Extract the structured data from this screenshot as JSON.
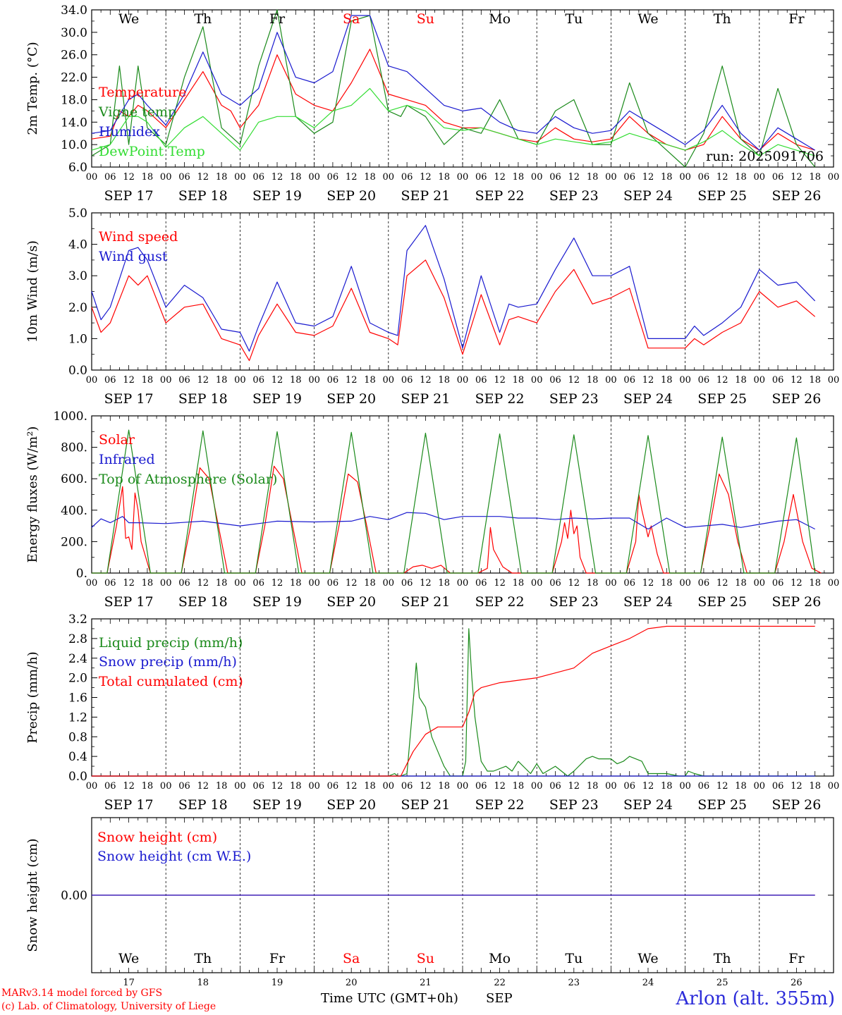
{
  "run_label": "run: 2025091706",
  "credits": {
    "line1": "MARv3.14 model forced by GFS",
    "line2": "(c) Lab. of Climatology, University of Liege"
  },
  "station": "Arlon (alt. 355m)",
  "x_axis": {
    "title": "Time UTC (GMT+0h)",
    "month": "SEP",
    "hour_ticks": [
      "00",
      "06",
      "12",
      "18"
    ],
    "date_labels": [
      "SEP 17",
      "SEP 18",
      "SEP 19",
      "SEP 20",
      "SEP 21",
      "SEP 22",
      "SEP 23",
      "SEP 24",
      "SEP 25",
      "SEP 26"
    ],
    "day_names": [
      "We",
      "Th",
      "Fr",
      "Sa",
      "Su",
      "Mo",
      "Tu",
      "We",
      "Th",
      "Fr"
    ],
    "day_numbers": [
      "17",
      "18",
      "19",
      "20",
      "21",
      "22",
      "23",
      "24",
      "25",
      "26"
    ],
    "weekend_color": "#ff0000",
    "weekend_index": [
      3,
      4
    ]
  },
  "chart_data": [
    {
      "type": "line",
      "ylabel": "2m Temp. (°C)",
      "ylim": [
        6.0,
        34.0
      ],
      "ytick_labels": [
        "6.0",
        "10.0",
        "14.0",
        "18.0",
        "22.0",
        "26.0",
        "30.0",
        "34.0"
      ],
      "x_unit": "hours since 2025-09-17 00 UTC",
      "series": [
        {
          "name": "Temperature",
          "color": "#ff0000",
          "x": [
            0,
            6,
            9,
            12,
            15,
            18,
            24,
            30,
            36,
            42,
            45,
            48,
            54,
            60,
            66,
            72,
            78,
            84,
            90,
            96,
            102,
            108,
            114,
            120,
            126,
            132,
            138,
            144,
            150,
            156,
            162,
            168,
            174,
            180,
            186,
            192,
            198,
            204,
            210,
            216,
            222,
            228,
            234
          ],
          "y": [
            11,
            11.5,
            16,
            15,
            17,
            16,
            13,
            18,
            23,
            17,
            16,
            13,
            17,
            26,
            19,
            17,
            16,
            21,
            27,
            19,
            18,
            17,
            14,
            13,
            13,
            12,
            11,
            10.5,
            13,
            11,
            10.5,
            11,
            15,
            12,
            10,
            9,
            10,
            15,
            11,
            9,
            12,
            10,
            9
          ]
        },
        {
          "name": "Vigne temp",
          "color": "#1b8a1b",
          "x": [
            0,
            6,
            9,
            12,
            15,
            18,
            24,
            30,
            36,
            42,
            48,
            54,
            60,
            66,
            72,
            78,
            84,
            90,
            96,
            100,
            102,
            108,
            114,
            120,
            126,
            132,
            138,
            144,
            150,
            156,
            162,
            168,
            174,
            180,
            186,
            192,
            198,
            204,
            210,
            216,
            222,
            228,
            234
          ],
          "y": [
            8,
            10,
            24,
            10,
            24,
            13,
            10,
            22,
            31,
            13,
            10,
            24,
            34,
            15,
            12,
            14,
            32,
            33,
            16,
            15,
            17,
            15,
            10,
            13,
            12,
            18,
            11,
            10,
            16,
            18,
            10,
            10,
            21,
            12,
            9,
            6,
            12,
            24,
            11,
            8,
            20,
            10,
            6
          ]
        },
        {
          "name": "Humidex",
          "color": "#1a1acf",
          "x": [
            0,
            6,
            12,
            15,
            18,
            24,
            30,
            36,
            42,
            48,
            54,
            60,
            66,
            72,
            78,
            84,
            90,
            96,
            102,
            108,
            114,
            120,
            126,
            132,
            138,
            144,
            150,
            156,
            162,
            168,
            174,
            180,
            186,
            192,
            198,
            204,
            210,
            216,
            222,
            228,
            234
          ],
          "y": [
            12,
            12.5,
            18,
            19,
            17,
            13.5,
            19,
            26.5,
            19,
            17,
            20,
            30,
            22,
            21,
            23,
            33,
            33,
            24,
            23,
            20,
            17,
            16,
            16.5,
            14,
            12.5,
            12,
            15,
            13,
            12,
            12.5,
            16,
            14,
            12,
            10,
            12.5,
            17,
            12,
            9,
            13,
            11,
            9
          ]
        },
        {
          "name": "DewPoint Temp",
          "color": "#33dd33",
          "x": [
            0,
            6,
            12,
            15,
            18,
            24,
            30,
            36,
            42,
            48,
            54,
            60,
            66,
            72,
            78,
            84,
            90,
            96,
            102,
            108,
            114,
            120,
            126,
            132,
            138,
            144,
            150,
            156,
            162,
            168,
            174,
            180,
            186,
            192,
            198,
            204,
            210,
            216,
            222,
            228,
            234
          ],
          "y": [
            9,
            10,
            15,
            15,
            14,
            9.5,
            13,
            15,
            12,
            9,
            14,
            15,
            15,
            13,
            16,
            17,
            20,
            16,
            17,
            16,
            13,
            12.5,
            13,
            12,
            11,
            10,
            11,
            10.5,
            10,
            10.5,
            12,
            11,
            10,
            9,
            10.5,
            12.5,
            10,
            8,
            10,
            9,
            8
          ]
        }
      ]
    },
    {
      "type": "line",
      "ylabel": "10m Wind (m/s)",
      "ylim": [
        0.0,
        5.0
      ],
      "ytick_labels": [
        "0.0",
        "1.0",
        "2.0",
        "3.0",
        "4.0",
        "5.0"
      ],
      "series": [
        {
          "name": "Wind speed",
          "color": "#ff0000",
          "x": [
            0,
            3,
            6,
            12,
            15,
            18,
            24,
            30,
            36,
            42,
            48,
            51,
            54,
            60,
            66,
            72,
            78,
            84,
            90,
            96,
            99,
            102,
            108,
            114,
            120,
            126,
            132,
            135,
            138,
            144,
            150,
            156,
            162,
            168,
            174,
            180,
            186,
            192,
            195,
            198,
            204,
            210,
            216,
            222,
            228,
            234
          ],
          "y": [
            2,
            1.2,
            1.5,
            3,
            2.7,
            3,
            1.5,
            2,
            2.1,
            1,
            0.8,
            0.3,
            1.1,
            2.1,
            1.2,
            1.1,
            1.4,
            2.6,
            1.2,
            1,
            0.8,
            3,
            3.5,
            2.3,
            0.5,
            2.4,
            0.8,
            1.6,
            1.7,
            1.5,
            2.5,
            3.2,
            2.1,
            2.3,
            2.6,
            0.7,
            0.7,
            0.7,
            1,
            0.8,
            1.2,
            1.5,
            2.5,
            2,
            2.2,
            1.7
          ]
        },
        {
          "name": "Wind gust",
          "color": "#1a1acf",
          "x": [
            0,
            3,
            6,
            12,
            15,
            18,
            24,
            30,
            36,
            42,
            48,
            51,
            54,
            60,
            66,
            72,
            78,
            84,
            90,
            96,
            99,
            102,
            108,
            114,
            120,
            126,
            132,
            135,
            138,
            144,
            150,
            156,
            162,
            168,
            174,
            180,
            186,
            192,
            195,
            198,
            204,
            210,
            216,
            222,
            228,
            234
          ],
          "y": [
            2.5,
            1.6,
            2,
            3.8,
            3.9,
            3.5,
            2,
            2.7,
            2.3,
            1.3,
            1.2,
            0.6,
            1.4,
            2.8,
            1.5,
            1.4,
            1.7,
            3.3,
            1.5,
            1.2,
            1.1,
            3.8,
            4.6,
            2.9,
            0.7,
            3,
            1.2,
            2.1,
            2,
            2.1,
            3.2,
            4.2,
            3,
            3,
            3.3,
            1,
            1,
            1,
            1.4,
            1.1,
            1.5,
            2,
            3.2,
            2.7,
            2.8,
            2.2
          ]
        }
      ]
    },
    {
      "type": "line",
      "ylabel": "Energy fluxes (W/m²)",
      "ylim": [
        0,
        1000
      ],
      "ytick_labels": [
        "0.",
        "200.",
        "400.",
        "600.",
        "800.",
        "1000."
      ],
      "series": [
        {
          "name": "Solar",
          "color": "#ff0000",
          "x": [
            0,
            5,
            8,
            10,
            11,
            12,
            13,
            14,
            15,
            16,
            19,
            29,
            32,
            35,
            38,
            41,
            44,
            53,
            56,
            59,
            62,
            65,
            68,
            77,
            80,
            83,
            86,
            89,
            92,
            101,
            104,
            107,
            110,
            113,
            116,
            125,
            128,
            129,
            130,
            133,
            136,
            149,
            152,
            153,
            154,
            155,
            156,
            157,
            158,
            160,
            173,
            176,
            177,
            178,
            180,
            181,
            183,
            185,
            197,
            200,
            203,
            206,
            209,
            212,
            221,
            224,
            227,
            230,
            233,
            236
          ],
          "y": [
            0,
            0,
            300,
            550,
            220,
            230,
            150,
            510,
            400,
            200,
            0,
            0,
            300,
            670,
            600,
            300,
            0,
            0,
            300,
            680,
            600,
            300,
            0,
            0,
            300,
            630,
            580,
            300,
            0,
            0,
            40,
            50,
            30,
            50,
            0,
            0,
            30,
            290,
            150,
            40,
            0,
            0,
            200,
            320,
            220,
            400,
            250,
            300,
            100,
            0,
            0,
            200,
            500,
            400,
            230,
            300,
            120,
            0,
            0,
            300,
            630,
            500,
            200,
            0,
            0,
            200,
            500,
            200,
            30,
            0
          ]
        },
        {
          "name": "Infrared",
          "color": "#1a1acf",
          "x": [
            0,
            3,
            6,
            10,
            12,
            15,
            24,
            36,
            48,
            60,
            72,
            84,
            90,
            96,
            102,
            108,
            114,
            120,
            126,
            132,
            138,
            144,
            150,
            156,
            162,
            168,
            174,
            180,
            186,
            192,
            198,
            204,
            210,
            216,
            222,
            228,
            234
          ],
          "y": [
            290,
            345,
            320,
            360,
            320,
            320,
            315,
            330,
            300,
            330,
            325,
            330,
            360,
            340,
            385,
            380,
            340,
            360,
            360,
            360,
            350,
            350,
            340,
            350,
            345,
            350,
            350,
            280,
            350,
            290,
            300,
            310,
            290,
            310,
            330,
            340,
            280
          ]
        },
        {
          "name": "Top of Atmosphere (Solar)",
          "color": "#1b8a1b",
          "x": [
            0,
            5,
            12,
            19,
            29,
            36,
            43,
            53,
            60,
            67,
            77,
            84,
            91,
            101,
            108,
            115,
            125,
            132,
            139,
            149,
            156,
            163,
            173,
            180,
            187,
            197,
            204,
            211,
            221,
            228,
            234
          ],
          "y": [
            0,
            0,
            910,
            0,
            0,
            905,
            0,
            0,
            900,
            0,
            0,
            895,
            0,
            0,
            890,
            0,
            0,
            885,
            0,
            0,
            880,
            0,
            0,
            875,
            0,
            0,
            865,
            0,
            0,
            860,
            0
          ]
        }
      ]
    },
    {
      "type": "line",
      "ylabel": "Precip (mm/h)",
      "ylim": [
        0.0,
        3.2
      ],
      "ytick_labels": [
        "0.0",
        "0.4",
        "0.8",
        "1.2",
        "1.6",
        "2.0",
        "2.4",
        "2.8",
        "3.2"
      ],
      "series": [
        {
          "name": "Liquid precip (mm/h)",
          "color": "#1b8a1b",
          "x": [
            0,
            96,
            98,
            99,
            100,
            102,
            104,
            105,
            106,
            108,
            110,
            112,
            114,
            116,
            118,
            120,
            121,
            122,
            123,
            124,
            126,
            128,
            130,
            134,
            136,
            138,
            142,
            144,
            146,
            150,
            154,
            156,
            160,
            162,
            164,
            168,
            170,
            172,
            174,
            178,
            180,
            186,
            190,
            192,
            193,
            195,
            198,
            234
          ],
          "y": [
            0,
            0,
            0.05,
            0,
            0,
            0.05,
            1.5,
            2.3,
            1.6,
            1.4,
            0.8,
            0.5,
            0.2,
            0,
            0,
            0,
            0.3,
            3.0,
            2,
            1.2,
            0.3,
            0.1,
            0.1,
            0.2,
            0.1,
            0.3,
            0.05,
            0.25,
            0.05,
            0.2,
            0,
            0.1,
            0.35,
            0.4,
            0.35,
            0.35,
            0.25,
            0.3,
            0.4,
            0.3,
            0.05,
            0.05,
            0,
            0,
            0.1,
            0.05,
            0,
            0
          ]
        },
        {
          "name": "Snow precip (mm/h)",
          "color": "#1a1acf",
          "x": [
            0,
            234
          ],
          "y": [
            0,
            0
          ]
        },
        {
          "name": "Total cumulated (cm)",
          "color": "#ff0000",
          "x": [
            0,
            100,
            104,
            108,
            112,
            120,
            122,
            124,
            126,
            132,
            138,
            144,
            150,
            156,
            162,
            168,
            174,
            180,
            186,
            234
          ],
          "y": [
            0,
            0,
            0.5,
            0.85,
            1.0,
            1.0,
            1.3,
            1.7,
            1.8,
            1.9,
            1.95,
            2.0,
            2.1,
            2.2,
            2.5,
            2.65,
            2.8,
            3.0,
            3.05,
            3.05
          ]
        }
      ]
    },
    {
      "type": "line",
      "ylabel": "Snow height (cm)",
      "ytick_labels": [
        "0.00"
      ],
      "series": [
        {
          "name": "Snow height (cm)",
          "color": "#ff0000",
          "x": [
            0,
            234
          ],
          "y": [
            0,
            0
          ]
        },
        {
          "name": "Snow height (cm W.E.)",
          "color": "#1a1acf",
          "x": [
            0,
            234
          ],
          "y": [
            0,
            0
          ]
        }
      ]
    }
  ]
}
